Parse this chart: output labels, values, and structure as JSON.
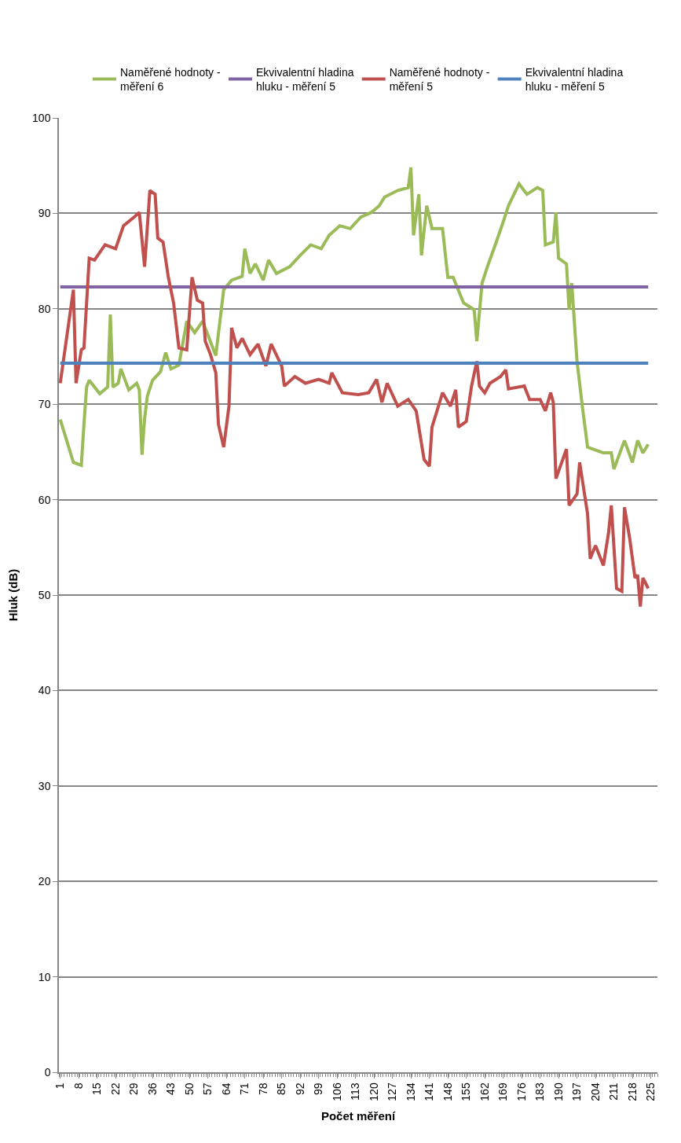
{
  "chart_data": {
    "type": "line",
    "xlabel": "Počet měření",
    "ylabel": "Hluk (dB)",
    "xlim": [
      0.5,
      227.5
    ],
    "xticks": [
      1,
      8,
      15,
      22,
      29,
      36,
      43,
      50,
      57,
      64,
      71,
      78,
      85,
      92,
      99,
      106,
      113,
      120,
      127,
      134,
      141,
      148,
      155,
      162,
      169,
      176,
      183,
      190,
      197,
      204,
      211,
      218,
      225
    ],
    "ylim": [
      0,
      100
    ],
    "yticks": [
      0,
      10,
      20,
      30,
      40,
      50,
      60,
      70,
      80,
      90,
      100
    ],
    "grid": "y",
    "legend": "top",
    "series": [
      {
        "name": "Naměřené hodnoty - měření 6",
        "color": "#9bbb59",
        "x": [
          1,
          6,
          9,
          10,
          11,
          12,
          16,
          19,
          20,
          21,
          23,
          24,
          27,
          30,
          31,
          32,
          33,
          34,
          36,
          39,
          41,
          43,
          46,
          49,
          52,
          55,
          60,
          63,
          66,
          70,
          71,
          73,
          75,
          78,
          80,
          83,
          88,
          92,
          96,
          100,
          103,
          107,
          111,
          115,
          119,
          122,
          124,
          129,
          133,
          134,
          135,
          137,
          138,
          140,
          142,
          146,
          148,
          150,
          154,
          158,
          159,
          161,
          163,
          166,
          169,
          171,
          175,
          178,
          182,
          184,
          185,
          188,
          189,
          190,
          193,
          194,
          195,
          197,
          199,
          201,
          207,
          210,
          211,
          215,
          218,
          220,
          222,
          224
        ],
        "values": [
          68.4,
          63.9,
          63.6,
          67.9,
          71.8,
          72.5,
          71.1,
          71.8,
          79.4,
          71.8,
          72.2,
          73.7,
          71.5,
          72.2,
          71.5,
          64.7,
          68.5,
          70.8,
          72.5,
          73.4,
          75.4,
          73.7,
          74.1,
          78.7,
          77.5,
          78.7,
          75.1,
          82.0,
          83.0,
          83.4,
          86.3,
          83.7,
          84.7,
          83.0,
          85.1,
          83.7,
          84.4,
          85.6,
          86.7,
          86.3,
          87.7,
          88.7,
          88.4,
          89.6,
          90.1,
          90.8,
          91.7,
          92.4,
          92.7,
          94.8,
          87.7,
          92.0,
          85.6,
          90.8,
          88.4,
          88.4,
          83.3,
          83.3,
          80.6,
          79.9,
          76.6,
          82.7,
          84.4,
          86.7,
          89.1,
          90.8,
          93.1,
          92.0,
          92.7,
          92.4,
          86.7,
          87.0,
          90.1,
          85.3,
          84.7,
          79.9,
          82.7,
          74.5,
          69.8,
          65.5,
          64.9,
          64.9,
          63.2,
          66.2,
          63.9,
          66.2,
          64.9,
          65.8
        ]
      },
      {
        "name": "Ekvivalentní hladina hluku - měření 5",
        "color": "#8064a2",
        "x": [
          1,
          224
        ],
        "values": [
          82.3,
          82.3
        ]
      },
      {
        "name": "Naměřené hodnoty - měření 5",
        "color": "#c0504d",
        "x": [
          1,
          6,
          7,
          9,
          10,
          12,
          14,
          18,
          22,
          25,
          29,
          31,
          33,
          35,
          37,
          38,
          40,
          42,
          44,
          46,
          49,
          51,
          53,
          55,
          56,
          58,
          60,
          61,
          63,
          65,
          66,
          68,
          70,
          73,
          76,
          79,
          81,
          85,
          86,
          90,
          94,
          99,
          103,
          104,
          108,
          114,
          118,
          121,
          123,
          125,
          129,
          133,
          136,
          139,
          141,
          142,
          146,
          149,
          151,
          152,
          155,
          157,
          159,
          160,
          162,
          164,
          168,
          170,
          171,
          177,
          179,
          183,
          185,
          187,
          188,
          189,
          193,
          194,
          197,
          198,
          201,
          202,
          204,
          207,
          209,
          210,
          212,
          214,
          215,
          217,
          219,
          220,
          221,
          222,
          224
        ],
        "values": [
          72.2,
          82.0,
          72.2,
          75.7,
          75.9,
          85.3,
          85.1,
          86.7,
          86.3,
          88.7,
          89.6,
          90.1,
          84.4,
          92.4,
          92.0,
          87.4,
          87.0,
          83.3,
          80.6,
          75.9,
          75.7,
          83.3,
          80.9,
          80.6,
          76.6,
          75.2,
          73.3,
          67.9,
          65.5,
          69.8,
          78.0,
          75.9,
          76.9,
          75.2,
          76.3,
          74.0,
          76.3,
          74.0,
          71.9,
          72.9,
          72.2,
          72.6,
          72.2,
          73.3,
          71.2,
          71.0,
          71.2,
          72.6,
          70.2,
          72.2,
          69.8,
          70.5,
          69.3,
          64.2,
          63.5,
          67.6,
          71.2,
          69.8,
          71.5,
          67.6,
          68.2,
          71.9,
          74.5,
          71.9,
          71.2,
          72.2,
          72.9,
          73.6,
          71.6,
          71.9,
          70.5,
          70.5,
          69.3,
          71.2,
          70.2,
          62.2,
          65.3,
          59.4,
          60.6,
          63.9,
          58.5,
          53.8,
          55.2,
          53.1,
          56.6,
          59.4,
          50.7,
          50.4,
          59.2,
          55.9,
          51.8,
          52.1,
          48.8,
          51.8,
          50.7
        ]
      },
      {
        "name": "Ekvivalentní hladina hluku - měření 5",
        "color": "#4f81bd",
        "x": [
          1,
          224
        ],
        "values": [
          74.3,
          74.3
        ]
      }
    ]
  }
}
